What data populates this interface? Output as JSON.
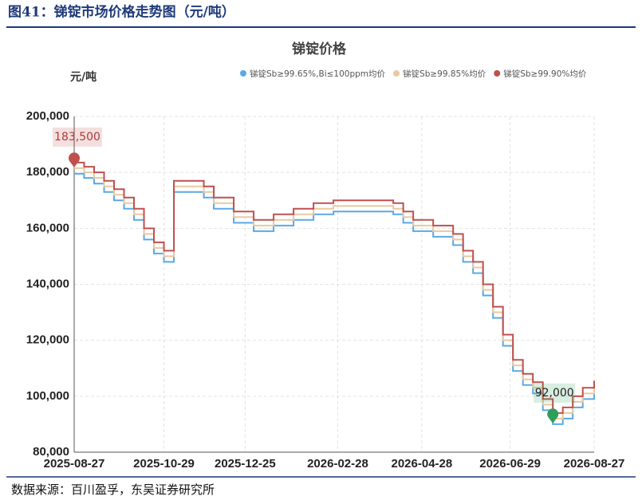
{
  "caption": "图41：锑锭市场价格走势图（元/吨）",
  "source": "数据来源：百川盈孚，东吴证券研究所",
  "chart_data": {
    "type": "line",
    "title": "锑锭价格",
    "y_label": "元/吨",
    "x": [
      "2025-08-27",
      "2025-09-03",
      "2025-09-10",
      "2025-09-17",
      "2025-09-24",
      "2025-10-01",
      "2025-10-08",
      "2025-10-15",
      "2025-10-22",
      "2025-10-29",
      "2025-11-05",
      "2025-11-26",
      "2025-12-03",
      "2025-12-17",
      "2025-12-31",
      "2026-01-14",
      "2026-01-28",
      "2026-02-11",
      "2026-02-25",
      "2026-04-08",
      "2026-04-15",
      "2026-04-22",
      "2026-05-06",
      "2026-05-20",
      "2026-05-27",
      "2026-06-03",
      "2026-06-10",
      "2026-06-17",
      "2026-06-24",
      "2026-07-01",
      "2026-07-08",
      "2026-07-15",
      "2026-07-22",
      "2026-07-29",
      "2026-08-05",
      "2026-08-12",
      "2026-08-19",
      "2026-08-27"
    ],
    "series": [
      {
        "name": "锑锭Sb≥99.65%,Bi≤100ppm均价",
        "color": "#5aa9e6",
        "values": [
          179500,
          178000,
          176000,
          173000,
          170000,
          167000,
          163000,
          156000,
          151000,
          148000,
          173000,
          171000,
          167000,
          162000,
          159000,
          161000,
          163000,
          165000,
          166000,
          165000,
          162000,
          159000,
          157000,
          154000,
          148000,
          144000,
          136000,
          128000,
          118000,
          109000,
          104000,
          101000,
          95000,
          90000,
          92000,
          96000,
          99000,
          101500
        ]
      },
      {
        "name": "锑锭Sb≥99.85%均价",
        "color": "#e8c9a0",
        "values": [
          181500,
          180000,
          178000,
          175000,
          172000,
          169000,
          165000,
          158000,
          153000,
          150000,
          175000,
          173000,
          169000,
          164000,
          161000,
          163000,
          165000,
          167000,
          168000,
          167000,
          164000,
          161000,
          159000,
          156000,
          150000,
          146000,
          138000,
          130000,
          120000,
          111000,
          106000,
          103000,
          97000,
          92000,
          94000,
          98000,
          101000,
          103500
        ]
      },
      {
        "name": "锑锭Sb≥99.90%均价",
        "color": "#c0504d",
        "values": [
          183500,
          182000,
          180000,
          177000,
          174000,
          171000,
          167000,
          160000,
          155000,
          152000,
          177000,
          175000,
          171000,
          166000,
          163000,
          165000,
          167000,
          169000,
          170000,
          169000,
          166000,
          163000,
          161000,
          158000,
          152000,
          148000,
          140000,
          132000,
          122000,
          113000,
          108000,
          105000,
          99000,
          94000,
          96000,
          100000,
          103000,
          105500
        ]
      }
    ],
    "annotations": [
      {
        "label": "183,500",
        "value": 183500,
        "x": "2025-08-27",
        "color": "#c0504d"
      },
      {
        "label": "92,000",
        "value": 92000,
        "x": "2026-07-29",
        "color": "#2e9e5b"
      }
    ],
    "xlim": [
      "2025-08-27",
      "2026-08-27"
    ],
    "xticks": [
      "2025-08-27",
      "2025-10-29",
      "2025-12-25",
      "2026-02-28",
      "2026-04-28",
      "2026-06-29",
      "2026-08-27"
    ],
    "ylim": [
      80000,
      200000
    ],
    "yticks": [
      {
        "value": 80000,
        "label": "80,000"
      },
      {
        "value": 100000,
        "label": "100,000"
      },
      {
        "value": 120000,
        "label": "120,000"
      },
      {
        "value": 140000,
        "label": "140,000"
      },
      {
        "value": 160000,
        "label": "160,000"
      },
      {
        "value": 180000,
        "label": "180,000"
      },
      {
        "value": 200000,
        "label": "200,000"
      }
    ],
    "grid": true,
    "step": true
  }
}
